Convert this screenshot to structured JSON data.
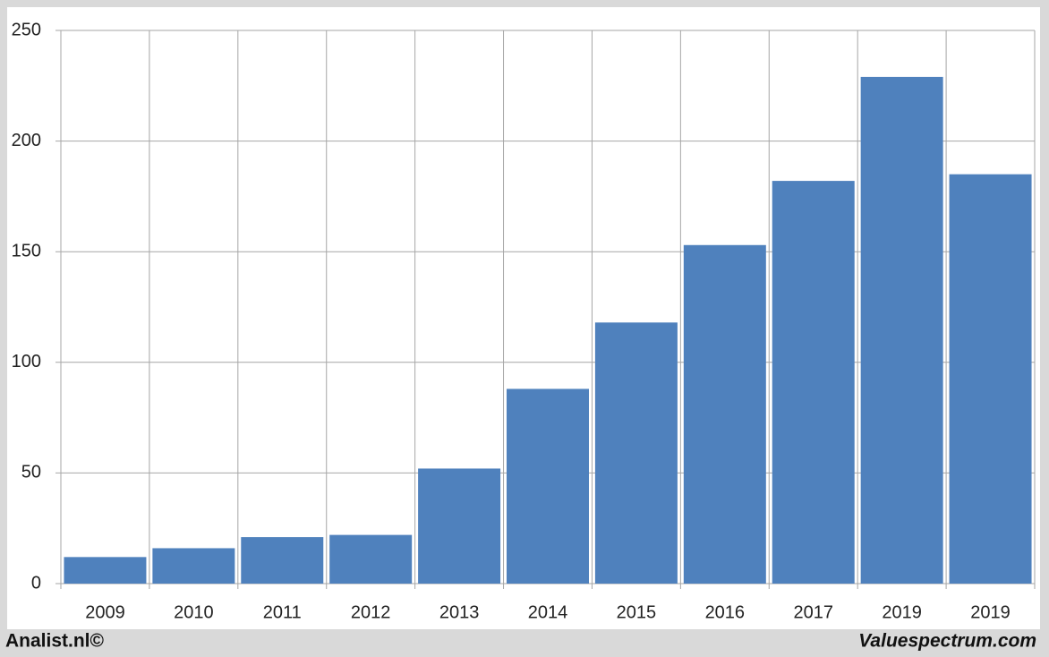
{
  "chart_data": {
    "type": "bar",
    "categories": [
      "2009",
      "2010",
      "2011",
      "2012",
      "2013",
      "2014",
      "2015",
      "2016",
      "2017",
      "2019",
      "2019"
    ],
    "values": [
      12,
      16,
      21,
      22,
      52,
      88,
      118,
      153,
      182,
      229,
      185
    ],
    "color": "#4f81bd",
    "ylim": [
      0,
      250
    ],
    "yticks": [
      0,
      50,
      100,
      150,
      200,
      250
    ],
    "grid": true,
    "footer_left": "Analist.nl©",
    "footer_right": "Valuespectrum.com"
  }
}
